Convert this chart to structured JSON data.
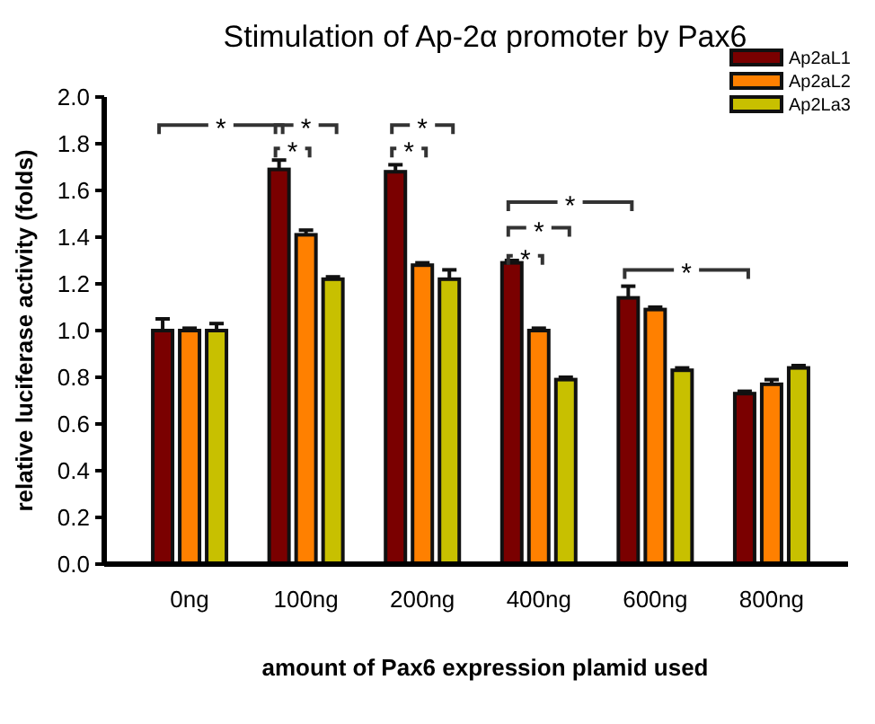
{
  "chart_data": {
    "type": "bar",
    "title": "Stimulation of Ap-2α promoter by Pax6",
    "xlabel": "amount of Pax6 expression plamid used",
    "ylabel": "relative luciferase activity (folds)",
    "categories": [
      "0ng",
      "100ng",
      "200ng",
      "400ng",
      "600ng",
      "800ng"
    ],
    "series": [
      {
        "name": "Ap2aL1",
        "color": "#7a0000",
        "values": [
          1.0,
          1.69,
          1.68,
          1.29,
          1.14,
          0.73
        ],
        "errors": [
          0.05,
          0.04,
          0.03,
          0.01,
          0.05,
          0.01
        ]
      },
      {
        "name": "Ap2aL2",
        "color": "#ff8000",
        "values": [
          1.0,
          1.41,
          1.28,
          1.0,
          1.09,
          0.77
        ],
        "errors": [
          0.01,
          0.02,
          0.01,
          0.01,
          0.01,
          0.02
        ]
      },
      {
        "name": "Ap2La3",
        "color": "#c8c000",
        "values": [
          1.0,
          1.22,
          1.22,
          0.79,
          0.83,
          0.84
        ],
        "errors": [
          0.03,
          0.01,
          0.04,
          0.01,
          0.01,
          0.01
        ]
      }
    ],
    "ylim": [
      0,
      2
    ],
    "yticks": [
      {
        "value": 0,
        "label": "0.0"
      },
      {
        "value": 0.2,
        "label": "0.2"
      },
      {
        "value": 0.4,
        "label": "0.4"
      },
      {
        "value": 0.6,
        "label": "0.6"
      },
      {
        "value": 0.8,
        "label": "0.8"
      },
      {
        "value": 1,
        "label": "1.0"
      },
      {
        "value": 1.2,
        "label": "1.2"
      },
      {
        "value": 1.4,
        "label": "1.4"
      },
      {
        "value": 1.6,
        "label": "1.6"
      },
      {
        "value": 1.8,
        "label": "1.8"
      },
      {
        "value": 2,
        "label": "2.0"
      }
    ],
    "legend": "top right",
    "annotations": [
      "*",
      "*",
      "*",
      "*",
      "*",
      "*",
      "*",
      "*",
      "*"
    ]
  }
}
